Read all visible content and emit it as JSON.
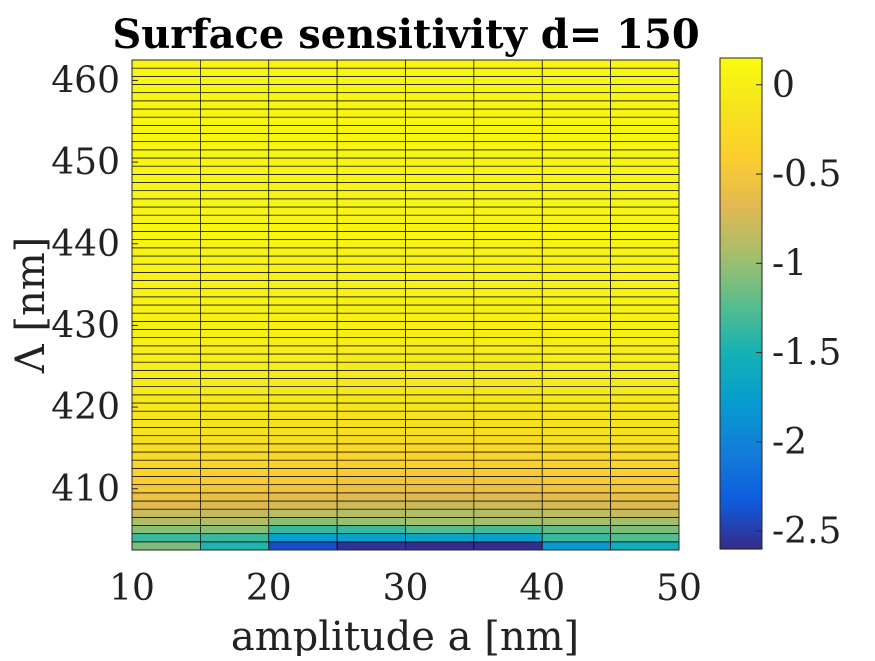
{
  "chart_data": {
    "type": "heatmap",
    "title": "Surface sensitivity d= 150",
    "xlabel": "amplitude a [nm]",
    "ylabel": "Λ [nm]",
    "x_ticks": [
      "10",
      "20",
      "30",
      "40",
      "50"
    ],
    "y_ticks": [
      "410",
      "420",
      "430",
      "440",
      "450",
      "460"
    ],
    "colorbar_ticks": [
      "0",
      "-0.5",
      "-1",
      "-1.5",
      "-2",
      "-2.5"
    ],
    "x": [
      10,
      15,
      20,
      25,
      30,
      35,
      40,
      45,
      50
    ],
    "xlim": [
      10,
      50
    ],
    "y": [
      403,
      404,
      405,
      406,
      407,
      408,
      409,
      410,
      411,
      412,
      413,
      414,
      415,
      416,
      417,
      418,
      419,
      420,
      421,
      422,
      423,
      424,
      425,
      426,
      427,
      428,
      429,
      430,
      431,
      432,
      433,
      434,
      435,
      436,
      437,
      438,
      439,
      440,
      441,
      442,
      443,
      444,
      445,
      446,
      447,
      448,
      449,
      450,
      451,
      452,
      453,
      454,
      455,
      456,
      457,
      458,
      459,
      460,
      461,
      462
    ],
    "ylim": [
      402.5,
      462.5
    ],
    "clim": [
      -2.6,
      0.15
    ],
    "colormap": "parula",
    "colors": {
      "grid_line": "#000000",
      "axes": "#262626",
      "background": "#ffffff"
    }
  }
}
